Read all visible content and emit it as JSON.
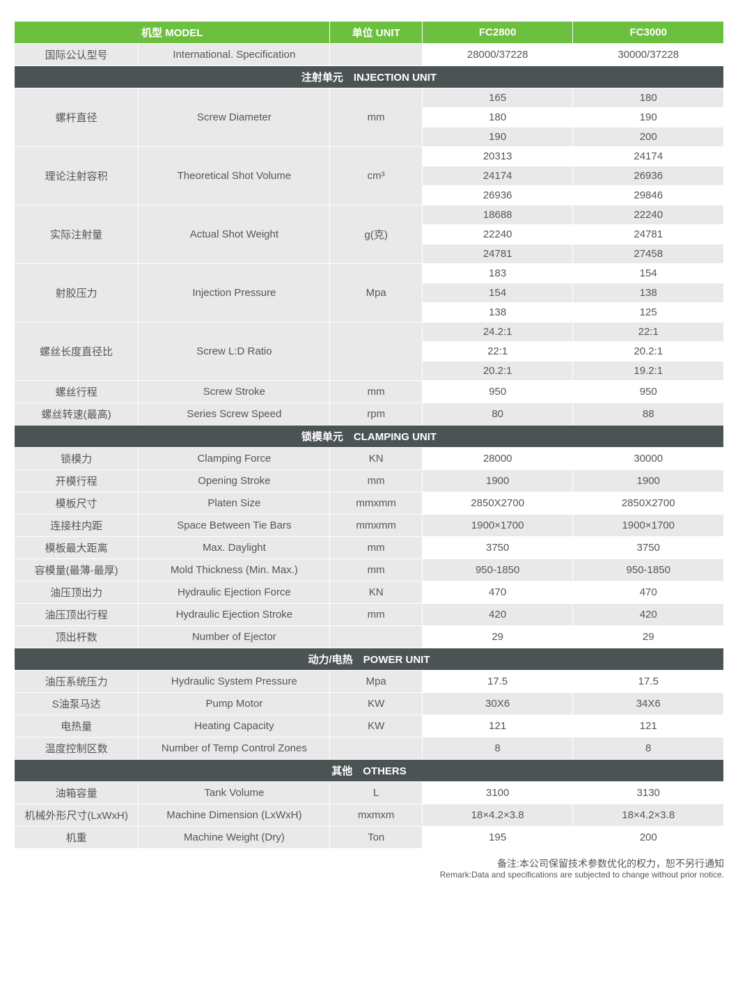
{
  "header": {
    "title": "机型 MODEL",
    "unit_label": "单位 UNIT",
    "model1": "FC2800",
    "model2": "FC3000"
  },
  "intl_spec": {
    "cn": "国际公认型号",
    "en": "International. Specification",
    "m1": "28000/37228",
    "m2": "30000/37228"
  },
  "sections": {
    "injection": "注射单元　INJECTION UNIT",
    "clamping": "锁模单元　CLAMPING UNIT",
    "power": "动力/电热　POWER  UNIT",
    "others": "其他　OTHERS"
  },
  "injection": {
    "screw_diameter": {
      "cn": "螺杆直径",
      "en": "Screw Diameter",
      "unit": "mm",
      "r0": {
        "m1": "165",
        "m2": "180"
      },
      "r1": {
        "m1": "180",
        "m2": "190"
      },
      "r2": {
        "m1": "190",
        "m2": "200"
      }
    },
    "shot_volume": {
      "cn": "理论注射容积",
      "en": "Theoretical Shot Volume",
      "unit": "cm³",
      "r0": {
        "m1": "20313",
        "m2": "24174"
      },
      "r1": {
        "m1": "24174",
        "m2": "26936"
      },
      "r2": {
        "m1": "26936",
        "m2": "29846"
      }
    },
    "shot_weight": {
      "cn": "实际注射量",
      "en": "Actual Shot Weight",
      "unit": "g(克)",
      "r0": {
        "m1": "18688",
        "m2": "22240"
      },
      "r1": {
        "m1": "22240",
        "m2": "24781"
      },
      "r2": {
        "m1": "24781",
        "m2": "27458"
      }
    },
    "injection_pressure": {
      "cn": "射胶压力",
      "en": "Injection Pressure",
      "unit": "Mpa",
      "r0": {
        "m1": "183",
        "m2": "154"
      },
      "r1": {
        "m1": "154",
        "m2": "138"
      },
      "r2": {
        "m1": "138",
        "m2": "125"
      }
    },
    "ld_ratio": {
      "cn": "螺丝长度直径比",
      "en": "Screw L:D Ratio",
      "unit": "",
      "r0": {
        "m1": "24.2:1",
        "m2": "22:1"
      },
      "r1": {
        "m1": "22:1",
        "m2": "20.2:1"
      },
      "r2": {
        "m1": "20.2:1",
        "m2": "19.2:1"
      }
    },
    "screw_stroke": {
      "cn": "螺丝行程",
      "en": "Screw Stroke",
      "unit": "mm",
      "m1": "950",
      "m2": "950"
    },
    "screw_speed": {
      "cn": "螺丝转速(最高)",
      "en": "Series Screw Speed",
      "unit": "rpm",
      "m1": "80",
      "m2": "88"
    }
  },
  "clamping": {
    "force": {
      "cn": "锁模力",
      "en": "Clamping Force",
      "unit": "KN",
      "m1": "28000",
      "m2": "30000"
    },
    "opening_stroke": {
      "cn": "开模行程",
      "en": "Opening Stroke",
      "unit": "mm",
      "m1": "1900",
      "m2": "1900"
    },
    "platen_size": {
      "cn": "模板尺寸",
      "en": "Platen Size",
      "unit": "mmxmm",
      "m1": "2850X2700",
      "m2": "2850X2700"
    },
    "tie_bars": {
      "cn": "连接柱内距",
      "en": "Space Between Tie Bars",
      "unit": "mmxmm",
      "m1": "1900×1700",
      "m2": "1900×1700"
    },
    "daylight": {
      "cn": "模板最大距离",
      "en": "Max. Daylight",
      "unit": "mm",
      "m1": "3750",
      "m2": "3750"
    },
    "mold_thickness": {
      "cn": "容模量(最薄-最厚)",
      "en": "Mold Thickness (Min. Max.)",
      "unit": "mm",
      "m1": "950-1850",
      "m2": "950-1850"
    },
    "ejection_force": {
      "cn": "油压顶出力",
      "en": "Hydraulic Ejection Force",
      "unit": "KN",
      "m1": "470",
      "m2": "470"
    },
    "ejection_stroke": {
      "cn": "油压顶出行程",
      "en": "Hydraulic Ejection Stroke",
      "unit": "mm",
      "m1": "420",
      "m2": "420"
    },
    "ejector_count": {
      "cn": "顶出杆数",
      "en": "Number of Ejector",
      "unit": "",
      "m1": "29",
      "m2": "29"
    }
  },
  "power": {
    "system_pressure": {
      "cn": "油压系统压力",
      "en": "Hydraulic System Pressure",
      "unit": "Mpa",
      "m1": "17.5",
      "m2": "17.5"
    },
    "pump_motor": {
      "cn": "S油泵马达",
      "en": "Pump Motor",
      "unit": "KW",
      "m1": "30X6",
      "m2": "34X6"
    },
    "heating_capacity": {
      "cn": "电热量",
      "en": "Heating Capacity",
      "unit": "KW",
      "m1": "121",
      "m2": "121"
    },
    "temp_zones": {
      "cn": "温度控制区数",
      "en": "Number of Temp Control Zones",
      "unit": "",
      "m1": "8",
      "m2": "8"
    }
  },
  "others": {
    "tank_volume": {
      "cn": "油箱容量",
      "en": "Tank Volume",
      "unit": "L",
      "m1": "3100",
      "m2": "3130"
    },
    "dimension": {
      "cn": "机械外形尺寸(LxWxH)",
      "en": "Machine Dimension (LxWxH)",
      "unit": "mxmxm",
      "m1": "18×4.2×3.8",
      "m2": "18×4.2×3.8"
    },
    "weight": {
      "cn": "机重",
      "en": "Machine Weight (Dry)",
      "unit": "Ton",
      "m1": "195",
      "m2": "200"
    }
  },
  "footnote": {
    "cn": "备注:本公司保留技术参数优化的权力，恕不另行通知",
    "en": "Remark:Data and specifications are subjected to change without prior notice."
  }
}
